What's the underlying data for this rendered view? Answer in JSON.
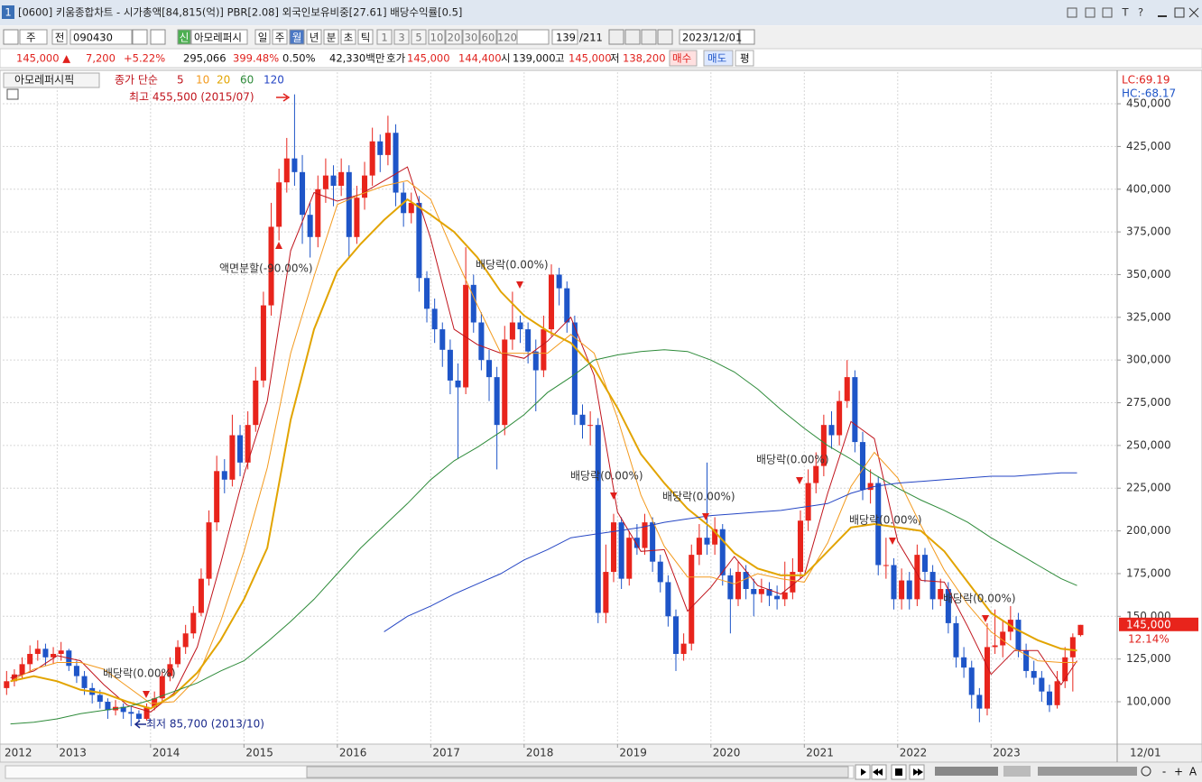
{
  "ui": {
    "window_number": "1",
    "title": "[0600] 키움종합차트 - 시가총액[84,815(억)] PBR[2.08] 외국인보유비중[27.61] 배당수익률[0.5]",
    "title_icons": [
      "T",
      "?"
    ],
    "toolbar": [
      "주",
      "전",
      "090430",
      "신",
      "아모레퍼시",
      "일",
      "주",
      "월",
      "년",
      "분",
      "초",
      "틱",
      "1",
      "3",
      "5",
      "10",
      "20",
      "30",
      "60",
      "120",
      "139",
      "/211",
      "2023/12/01"
    ],
    "info": [
      "145,000 ▲",
      "7,200",
      "+5.22%",
      "295,066",
      "399.48%",
      "0.50%",
      "42,330백만",
      "호가",
      "145,000",
      "144,400",
      "시",
      "139,000",
      "고",
      "145,000",
      "저",
      "138,200",
      "매수",
      "매도",
      "평"
    ],
    "zoom_controls": [
      "-",
      "+",
      "A"
    ]
  },
  "chart_data": {
    "type": "candlestick",
    "title": "아모레퍼시픽",
    "legend_label": "종가 단순",
    "up_color": "#e8241c",
    "down_color": "#1e55c8",
    "grid": true,
    "xlim": [
      2012.4167,
      2024.35
    ],
    "xticks": [
      2012,
      2013,
      2014,
      2015,
      2016,
      2017,
      2018,
      2019,
      2020,
      2021,
      2022,
      2023
    ],
    "date_label": "12/01",
    "ylim": [
      75200,
      468500
    ],
    "yticks": [
      {
        "value": 100000,
        "label": "100,000"
      },
      {
        "value": 125000,
        "label": "125,000"
      },
      {
        "value": 150000,
        "label": "150,000"
      },
      {
        "value": 175000,
        "label": "175,000"
      },
      {
        "value": 200000,
        "label": "200,000"
      },
      {
        "value": 225000,
        "label": "225,000"
      },
      {
        "value": 250000,
        "label": "250,000"
      },
      {
        "value": 275000,
        "label": "275,000"
      },
      {
        "value": 300000,
        "label": "300,000"
      },
      {
        "value": 325000,
        "label": "325,000"
      },
      {
        "value": 350000,
        "label": "350,000"
      },
      {
        "value": 375000,
        "label": "375,000"
      },
      {
        "value": 400000,
        "label": "400,000"
      },
      {
        "value": 425000,
        "label": "425,000"
      },
      {
        "value": 450000,
        "label": "450,000"
      }
    ],
    "lc_label": "LC:69.19",
    "hc_label": "HC:-68.17",
    "last_price_label": "145,000",
    "last_change_label": "12.14%",
    "high_label": "최고 455,500 (2015/07)",
    "low_label": "최저 85,700 (2013/10)",
    "annotations": [
      "액면분할(-90.00%)",
      "배당락(0.00%)",
      "배당락(0.00%)",
      "배당락(0.00%)",
      "배당락(0.00%)",
      "배당락(0.00%)",
      "배당락(0.00%)",
      "배당락(0.00%)"
    ],
    "candles": [
      [
        108000,
        118000,
        104000,
        112000
      ],
      [
        112000,
        119000,
        109000,
        116000
      ],
      [
        116000,
        126000,
        113000,
        122000
      ],
      [
        122000,
        133000,
        118000,
        128000
      ],
      [
        128000,
        136000,
        124000,
        131000
      ],
      [
        131000,
        134000,
        121000,
        126000
      ],
      [
        126000,
        132000,
        122000,
        128000
      ],
      [
        128000,
        135000,
        124000,
        130000
      ],
      [
        130000,
        131000,
        118000,
        121000
      ],
      [
        121000,
        124000,
        111000,
        115000
      ],
      [
        115000,
        118000,
        104000,
        108000
      ],
      [
        108000,
        111000,
        99000,
        104000
      ],
      [
        104000,
        107000,
        96000,
        100000
      ],
      [
        100000,
        102000,
        90000,
        95000
      ],
      [
        95000,
        101000,
        92000,
        97000
      ],
      [
        97000,
        99000,
        90000,
        94000
      ],
      [
        94000,
        97000,
        85700,
        93000
      ],
      [
        93000,
        95000,
        88000,
        90000
      ],
      [
        90000,
        99000,
        89000,
        97000
      ],
      [
        97000,
        106000,
        95000,
        102000
      ],
      [
        102000,
        118000,
        100000,
        115000
      ],
      [
        115000,
        126000,
        112000,
        122000
      ],
      [
        122000,
        136000,
        120000,
        132000
      ],
      [
        132000,
        145000,
        128000,
        140000
      ],
      [
        140000,
        156000,
        137000,
        152000
      ],
      [
        152000,
        178000,
        150000,
        172000
      ],
      [
        172000,
        212000,
        168000,
        205000
      ],
      [
        205000,
        244000,
        200000,
        235000
      ],
      [
        235000,
        242000,
        222000,
        230000
      ],
      [
        230000,
        268000,
        226000,
        256000
      ],
      [
        256000,
        262000,
        232000,
        240000
      ],
      [
        240000,
        270000,
        236000,
        262000
      ],
      [
        262000,
        296000,
        258000,
        288000
      ],
      [
        288000,
        340000,
        284000,
        332000
      ],
      [
        332000,
        392000,
        326000,
        378000
      ],
      [
        378000,
        412000,
        370000,
        404000
      ],
      [
        404000,
        430000,
        398000,
        418000
      ],
      [
        418000,
        455500,
        402000,
        410000
      ],
      [
        410000,
        420000,
        368000,
        385000
      ],
      [
        385000,
        392000,
        360000,
        372000
      ],
      [
        372000,
        408000,
        366000,
        400000
      ],
      [
        400000,
        418000,
        392000,
        408000
      ],
      [
        408000,
        414000,
        390000,
        402000
      ],
      [
        402000,
        418000,
        396000,
        410000
      ],
      [
        410000,
        414000,
        360000,
        372000
      ],
      [
        372000,
        402000,
        368000,
        395000
      ],
      [
        395000,
        416000,
        388000,
        408000
      ],
      [
        408000,
        436000,
        402000,
        428000
      ],
      [
        428000,
        432000,
        410000,
        420000
      ],
      [
        420000,
        443000,
        414000,
        433000
      ],
      [
        433000,
        438000,
        390000,
        398000
      ],
      [
        398000,
        404000,
        378000,
        386000
      ],
      [
        386000,
        398000,
        380000,
        392000
      ],
      [
        392000,
        396000,
        340000,
        348000
      ],
      [
        348000,
        352000,
        322000,
        330000
      ],
      [
        330000,
        336000,
        310000,
        318000
      ],
      [
        318000,
        322000,
        296000,
        306000
      ],
      [
        306000,
        312000,
        280000,
        288000
      ],
      [
        288000,
        298000,
        242000,
        284000
      ],
      [
        284000,
        366000,
        280000,
        344000
      ],
      [
        344000,
        350000,
        316000,
        322000
      ],
      [
        322000,
        328000,
        294000,
        300000
      ],
      [
        300000,
        306000,
        276000,
        290000
      ],
      [
        290000,
        296000,
        236000,
        262000
      ],
      [
        262000,
        320000,
        256000,
        312000
      ],
      [
        312000,
        340000,
        306000,
        322000
      ],
      [
        322000,
        326000,
        310000,
        318000
      ],
      [
        318000,
        322000,
        298000,
        305000
      ],
      [
        305000,
        312000,
        270000,
        294000
      ],
      [
        294000,
        326000,
        290000,
        318000
      ],
      [
        318000,
        356000,
        314000,
        350000
      ],
      [
        350000,
        354000,
        332000,
        342000
      ],
      [
        342000,
        346000,
        316000,
        322000
      ],
      [
        322000,
        326000,
        262000,
        268000
      ],
      [
        268000,
        274000,
        254000,
        262000
      ],
      [
        262000,
        270000,
        250000,
        262000
      ],
      [
        262000,
        266000,
        146000,
        152000
      ],
      [
        152000,
        192000,
        146000,
        176000
      ],
      [
        176000,
        210000,
        170000,
        205000
      ],
      [
        205000,
        208000,
        166000,
        172000
      ],
      [
        172000,
        200000,
        168000,
        196000
      ],
      [
        196000,
        204000,
        186000,
        190000
      ],
      [
        190000,
        210000,
        186000,
        205000
      ],
      [
        205000,
        208000,
        176000,
        182000
      ],
      [
        182000,
        186000,
        164000,
        170000
      ],
      [
        170000,
        174000,
        144000,
        150000
      ],
      [
        150000,
        154000,
        118000,
        128000
      ],
      [
        128000,
        140000,
        124000,
        134000
      ],
      [
        134000,
        192000,
        130000,
        186000
      ],
      [
        186000,
        204000,
        180000,
        196000
      ],
      [
        196000,
        240000,
        186000,
        192000
      ],
      [
        192000,
        208000,
        186000,
        201000
      ],
      [
        201000,
        204000,
        168000,
        174000
      ],
      [
        174000,
        178000,
        140000,
        160000
      ],
      [
        160000,
        182000,
        156000,
        176000
      ],
      [
        176000,
        180000,
        160000,
        166000
      ],
      [
        166000,
        172000,
        150000,
        163000
      ],
      [
        163000,
        172000,
        158000,
        166000
      ],
      [
        166000,
        170000,
        156000,
        162000
      ],
      [
        162000,
        168000,
        154000,
        160000
      ],
      [
        160000,
        182000,
        156000,
        164000
      ],
      [
        164000,
        184000,
        160000,
        176000
      ],
      [
        176000,
        212000,
        172000,
        206000
      ],
      [
        206000,
        236000,
        200000,
        228000
      ],
      [
        228000,
        246000,
        222000,
        238000
      ],
      [
        238000,
        268000,
        232000,
        262000
      ],
      [
        262000,
        270000,
        248000,
        256000
      ],
      [
        256000,
        282000,
        250000,
        276000
      ],
      [
        276000,
        300000,
        272000,
        290000
      ],
      [
        290000,
        294000,
        246000,
        252000
      ],
      [
        252000,
        258000,
        218000,
        224000
      ],
      [
        224000,
        236000,
        216000,
        228000
      ],
      [
        228000,
        232000,
        174000,
        180000
      ],
      [
        180000,
        196000,
        172000,
        180000
      ],
      [
        180000,
        184000,
        154000,
        160000
      ],
      [
        160000,
        178000,
        154000,
        171000
      ],
      [
        171000,
        176000,
        154000,
        160000
      ],
      [
        160000,
        192000,
        156000,
        186000
      ],
      [
        186000,
        190000,
        170000,
        176000
      ],
      [
        176000,
        180000,
        154000,
        160000
      ],
      [
        160000,
        172000,
        156000,
        166000
      ],
      [
        166000,
        170000,
        140000,
        146000
      ],
      [
        146000,
        150000,
        120000,
        126000
      ],
      [
        126000,
        132000,
        114000,
        120000
      ],
      [
        120000,
        124000,
        96000,
        104000
      ],
      [
        104000,
        108000,
        88000,
        96000
      ],
      [
        96000,
        146000,
        92000,
        132000
      ],
      [
        132000,
        154000,
        128000,
        133000
      ],
      [
        133000,
        148000,
        126000,
        141000
      ],
      [
        141000,
        156000,
        136000,
        148000
      ],
      [
        148000,
        152000,
        126000,
        130000
      ],
      [
        130000,
        134000,
        114000,
        118000
      ],
      [
        118000,
        124000,
        110000,
        114000
      ],
      [
        114000,
        118000,
        100000,
        106000
      ],
      [
        106000,
        110000,
        94000,
        98000
      ],
      [
        98000,
        118000,
        96000,
        112000
      ],
      [
        112000,
        132000,
        108000,
        126000
      ],
      [
        126000,
        140000,
        106000,
        137800
      ],
      [
        139000,
        145000,
        138200,
        145000
      ]
    ],
    "ma_x": [
      2012.5,
      2012.75,
      2013.0,
      2013.25,
      2013.5,
      2013.75,
      2014.0,
      2014.25,
      2014.5,
      2014.75,
      2015.0,
      2015.25,
      2015.5,
      2015.75,
      2016.0,
      2016.25,
      2016.5,
      2016.75,
      2017.0,
      2017.25,
      2017.5,
      2017.75,
      2018.0,
      2018.25,
      2018.5,
      2018.75,
      2019.0,
      2019.25,
      2019.5,
      2019.75,
      2020.0,
      2020.25,
      2020.5,
      2020.75,
      2021.0,
      2021.25,
      2021.5,
      2021.75,
      2022.0,
      2022.25,
      2022.5,
      2022.75,
      2023.0,
      2023.25,
      2023.5,
      2023.75,
      2023.92
    ],
    "series": [
      {
        "name": "5",
        "color": "#c0141c",
        "width": 1,
        "values": [
          114000,
          118000,
          127000,
          124000,
          110000,
          98000,
          94000,
          105000,
          132000,
          181000,
          233000,
          276000,
          364000,
          398000,
          393000,
          397000,
          405000,
          413000,
          371000,
          318000,
          309000,
          304000,
          301000,
          311000,
          325000,
          291000,
          211000,
          188000,
          189000,
          153000,
          167000,
          185000,
          168000,
          163000,
          174000,
          222000,
          264000,
          254000,
          194000,
          171000,
          170000,
          144000,
          116000,
          130000,
          130000,
          110000,
          124000
        ]
      },
      {
        "name": "10",
        "color": "#f39a1e",
        "width": 1,
        "values": [
          112000,
          119000,
          123000,
          123000,
          119000,
          109000,
          99000,
          100000,
          114000,
          147000,
          188000,
          237000,
          304000,
          349000,
          391000,
          397000,
          402000,
          405000,
          394000,
          362000,
          332000,
          304000,
          304000,
          304000,
          315000,
          304000,
          266000,
          221000,
          191000,
          173000,
          173000,
          169000,
          175000,
          172000,
          170000,
          193000,
          226000,
          246000,
          231000,
          203000,
          177000,
          157000,
          141000,
          131000,
          124000,
          123000,
          123000
        ]
      },
      {
        "name": "20",
        "color": "#e2a400",
        "width": 2,
        "values": [
          112000,
          115000,
          112000,
          107000,
          105000,
          100000,
          96000,
          104000,
          117000,
          136000,
          160000,
          190000,
          265000,
          318000,
          352000,
          368000,
          382000,
          394000,
          385000,
          375000,
          360000,
          340000,
          326000,
          317000,
          310000,
          295000,
          272000,
          245000,
          228000,
          213000,
          202000,
          187000,
          178000,
          174000,
          174000,
          188000,
          202000,
          204000,
          202000,
          200000,
          188000,
          170000,
          152000,
          143000,
          136000,
          131000,
          130000
        ]
      },
      {
        "name": "60",
        "color": "#2e8b3a",
        "width": 1,
        "values": [
          87000,
          88000,
          90000,
          93000,
          95000,
          97000,
          101000,
          106000,
          111000,
          118000,
          124000,
          135000,
          147000,
          160000,
          175000,
          190000,
          203000,
          216000,
          230000,
          241000,
          249000,
          258000,
          268000,
          281000,
          290000,
          300000,
          303000,
          305000,
          306000,
          305000,
          300000,
          293000,
          283000,
          271000,
          260000,
          250000,
          242000,
          233000,
          225000,
          218000,
          212000,
          205000,
          196000,
          188000,
          180000,
          172000,
          168000
        ]
      },
      {
        "name": "120",
        "color": "#2546c4",
        "width": 1,
        "values": [
          null,
          null,
          null,
          null,
          null,
          null,
          null,
          null,
          null,
          null,
          null,
          null,
          null,
          null,
          null,
          null,
          141000,
          150000,
          156000,
          163000,
          169000,
          175000,
          183000,
          189000,
          196000,
          198000,
          200000,
          202000,
          205000,
          207000,
          209000,
          210000,
          211000,
          212000,
          214000,
          216000,
          222000,
          226000,
          228000,
          229000,
          230000,
          231000,
          232000,
          232000,
          233000,
          234000,
          234000
        ]
      }
    ]
  }
}
